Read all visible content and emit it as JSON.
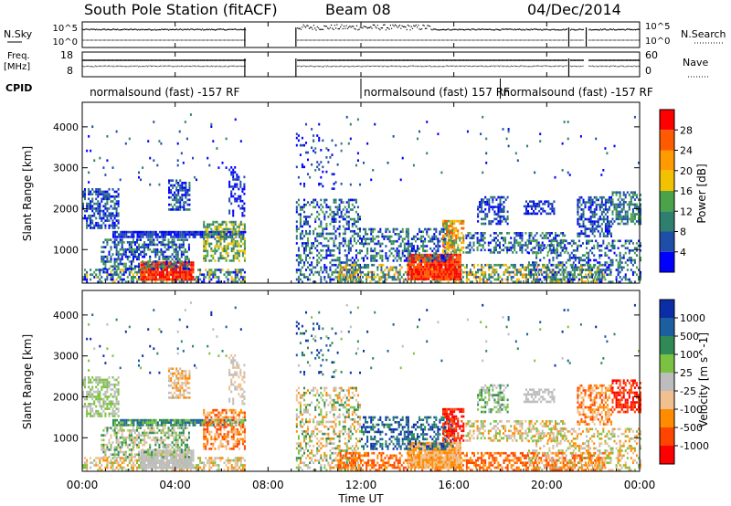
{
  "header": {
    "station": "South Pole Station (fitACF)",
    "beam": "Beam 08",
    "date": "04/Dec/2014"
  },
  "left_labels": {
    "nsky": "N.Sky",
    "nsky_ticks": [
      "10^5",
      "10^0"
    ],
    "freq_line1": "Freq.",
    "freq_line2": "[MHz]",
    "freq_ticks": [
      "18",
      "8"
    ],
    "cpid": "CPID"
  },
  "right_labels": {
    "nsearch": "N.Search",
    "nsearch_ticks": [
      "10^5",
      "10^0"
    ],
    "nave": "Nave",
    "nave_ticks": [
      "60",
      "0"
    ]
  },
  "cpid_segments": [
    {
      "label": "normalsound (fast) -157 RF",
      "start_hour": 0.2
    },
    {
      "label": "normalsound (fast) 157 RF",
      "start_hour": 12.0
    },
    {
      "label": "normalsound (fast) -157 RF",
      "start_hour": 18.0
    }
  ],
  "colors": {
    "power_scale": [
      "#0000ff",
      "#1f4ea8",
      "#2f7f6e",
      "#4aa24a",
      "#f2c200",
      "#ff9a00",
      "#ff5a00",
      "#ff0000"
    ],
    "velocity_scale": [
      "#0b2ea8",
      "#1c5fa0",
      "#2f8a55",
      "#7cc242",
      "#bdbdbd",
      "#f0c090",
      "#ff8c00",
      "#ff4500",
      "#ff0000"
    ]
  },
  "chart_data": [
    {
      "type": "heatmap",
      "panel": "power",
      "ylabel": "Slant Range [km]",
      "yticks": [
        "1000",
        "2000",
        "3000",
        "4000"
      ],
      "ylim": [
        180,
        4600
      ],
      "xlim": [
        0,
        24
      ],
      "colorbar_label": "Power [dB]",
      "colorbar_ticks": [
        "4",
        "8",
        "12",
        "16",
        "20",
        "24",
        "28"
      ],
      "data_gap_hours": [
        7.0,
        9.2
      ]
    },
    {
      "type": "heatmap",
      "panel": "velocity",
      "ylabel": "Slant Range [km]",
      "yticks": [
        "1000",
        "2000",
        "3000",
        "4000"
      ],
      "ylim": [
        180,
        4600
      ],
      "xlim": [
        0,
        24
      ],
      "colorbar_label": "Velocity [m s^-1]",
      "colorbar_ticks": [
        "1000",
        "500",
        "100",
        "25",
        "-25",
        "-100",
        "-500",
        "-1000"
      ],
      "xticks": [
        "00:00",
        "04:00",
        "08:00",
        "12:00",
        "16:00",
        "20:00",
        "00:00"
      ],
      "xlabel": "Time UT",
      "data_gap_hours": [
        7.0,
        9.2
      ]
    }
  ]
}
